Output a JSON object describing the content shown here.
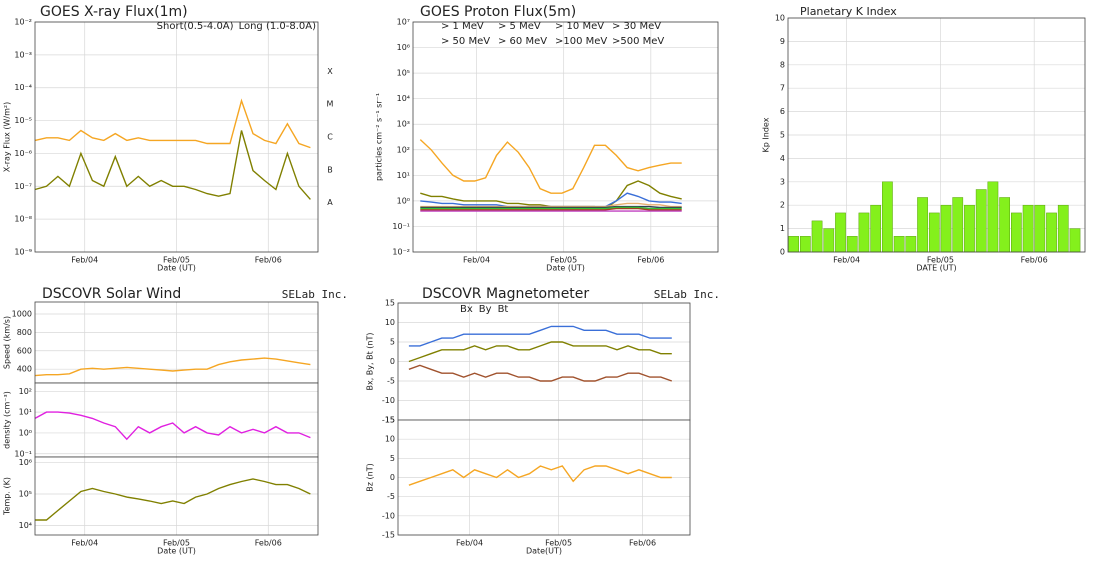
{
  "chart_data": [
    {
      "type": "line",
      "title": "GOES X-ray Flux(1m)",
      "ylabel": "X-ray Flux (W/m²)",
      "xlabel": "Date (UT)",
      "log_y": true,
      "grid": true,
      "xlim": [
        0,
        74
      ],
      "xticks": [
        {
          "value": 13,
          "label": "Feb/04"
        },
        {
          "value": 37,
          "label": "Feb/05"
        },
        {
          "value": 61,
          "label": "Feb/06"
        }
      ],
      "ylim": [
        1e-09,
        0.01
      ],
      "yticks": [
        {
          "value": 1e-09,
          "label": "10⁻⁹"
        },
        {
          "value": 1e-08,
          "label": "10⁻⁸"
        },
        {
          "value": 1e-07,
          "label": "10⁻⁷"
        },
        {
          "value": 1e-06,
          "label": "10⁻⁶"
        },
        {
          "value": 1e-05,
          "label": "10⁻⁵"
        },
        {
          "value": 0.0001,
          "label": "10⁻⁴"
        },
        {
          "value": 0.001,
          "label": "10⁻³"
        },
        {
          "value": 0.01,
          "label": "10⁻²"
        }
      ],
      "flare_classes": [
        {
          "value": 1e-08,
          "label": "A"
        },
        {
          "value": 1e-07,
          "label": "B"
        },
        {
          "value": 1e-06,
          "label": "C"
        },
        {
          "value": 1e-05,
          "label": "M"
        },
        {
          "value": 0.0001,
          "label": "X"
        }
      ],
      "x": [
        0,
        3,
        6,
        9,
        12,
        15,
        18,
        21,
        24,
        27,
        30,
        33,
        36,
        39,
        42,
        45,
        48,
        51,
        54,
        57,
        60,
        63,
        66,
        69,
        72
      ],
      "series": [
        {
          "name": "Short(0.5-4.0A)",
          "color": "#808000",
          "values": [
            8e-08,
            1e-07,
            2e-07,
            1e-07,
            1e-06,
            1.5e-07,
            1e-07,
            8e-07,
            1e-07,
            2e-07,
            1e-07,
            1.5e-07,
            1e-07,
            1e-07,
            8e-08,
            6e-08,
            5e-08,
            6e-08,
            5e-06,
            3e-07,
            1.5e-07,
            8e-08,
            1e-06,
            1e-07,
            4e-08
          ]
        },
        {
          "name": "Long (1.0-8.0A)",
          "color": "#f5a623",
          "values": [
            2.5e-06,
            3e-06,
            3e-06,
            2.5e-06,
            5e-06,
            3e-06,
            2.5e-06,
            4e-06,
            2.5e-06,
            3e-06,
            2.5e-06,
            2.5e-06,
            2.5e-06,
            2.5e-06,
            2.5e-06,
            2e-06,
            2e-06,
            2e-06,
            4e-05,
            4e-06,
            2.5e-06,
            2e-06,
            8e-06,
            2e-06,
            1.5e-06
          ]
        }
      ]
    },
    {
      "type": "line",
      "title": "GOES Proton Flux(5m)",
      "ylabel": "particles cm⁻² s⁻¹ sr⁻¹",
      "xlabel": "Date (UT)",
      "log_y": true,
      "grid": true,
      "xlim": [
        -2,
        82
      ],
      "xticks": [
        {
          "value": 15.5,
          "label": "Feb/04"
        },
        {
          "value": 39.5,
          "label": "Feb/05"
        },
        {
          "value": 63.5,
          "label": "Feb/06"
        }
      ],
      "ylim": [
        0.01,
        10000000.0
      ],
      "yticks": [
        {
          "value": 0.01,
          "label": "10⁻²"
        },
        {
          "value": 0.1,
          "label": "10⁻¹"
        },
        {
          "value": 1,
          "label": "10⁰"
        },
        {
          "value": 10,
          "label": "10¹"
        },
        {
          "value": 100,
          "label": "10²"
        },
        {
          "value": 1000,
          "label": "10³"
        },
        {
          "value": 10000,
          "label": "10⁴"
        },
        {
          "value": 100000,
          "label": "10⁵"
        },
        {
          "value": 1000000,
          "label": "10⁶"
        },
        {
          "value": 10000000,
          "label": "10⁷"
        }
      ],
      "x": [
        0,
        3,
        6,
        9,
        12,
        15,
        18,
        21,
        24,
        27,
        30,
        33,
        36,
        39,
        42,
        45,
        48,
        51,
        54,
        57,
        60,
        63,
        66,
        69,
        72
      ],
      "series": [
        {
          "name": "> 1 MeV",
          "color": "#f5a623",
          "values": [
            250,
            100,
            30,
            10,
            6,
            6,
            8,
            60,
            200,
            80,
            20,
            3,
            2,
            2,
            3,
            20,
            150,
            150,
            60,
            20,
            15,
            20,
            25,
            30,
            30
          ]
        },
        {
          "name": "> 5 MeV",
          "color": "#808000",
          "values": [
            2,
            1.5,
            1.5,
            1.2,
            1,
            1,
            1,
            1,
            0.8,
            0.8,
            0.7,
            0.7,
            0.6,
            0.6,
            0.6,
            0.6,
            0.6,
            0.5,
            1,
            4,
            6,
            4,
            2,
            1.5,
            1.2
          ]
        },
        {
          "name": "> 10 MeV",
          "color": "#3a6fd8",
          "values": [
            1,
            0.9,
            0.8,
            0.8,
            0.7,
            0.7,
            0.7,
            0.7,
            0.6,
            0.6,
            0.6,
            0.6,
            0.6,
            0.6,
            0.6,
            0.6,
            0.6,
            0.6,
            1,
            2,
            1.5,
            1,
            0.9,
            0.9,
            0.8
          ]
        },
        {
          "name": "> 30 MeV",
          "color": "#e8b070",
          "values": [
            0.6,
            0.6,
            0.6,
            0.6,
            0.6,
            0.6,
            0.6,
            0.6,
            0.6,
            0.6,
            0.6,
            0.6,
            0.6,
            0.6,
            0.6,
            0.6,
            0.6,
            0.6,
            0.7,
            0.8,
            0.8,
            0.7,
            0.7,
            0.6,
            0.6
          ]
        },
        {
          "name": "> 50 MeV",
          "color": "#304050",
          "values": [
            0.55,
            0.55,
            0.55,
            0.55,
            0.55,
            0.55,
            0.55,
            0.55,
            0.55,
            0.55,
            0.55,
            0.55,
            0.55,
            0.55,
            0.55,
            0.55,
            0.55,
            0.55,
            0.6,
            0.6,
            0.6,
            0.6,
            0.55,
            0.55,
            0.55
          ]
        },
        {
          "name": "> 60 MeV",
          "color": "#33c033",
          "values": [
            0.5,
            0.5,
            0.5,
            0.5,
            0.5,
            0.5,
            0.5,
            0.5,
            0.5,
            0.5,
            0.5,
            0.5,
            0.5,
            0.5,
            0.5,
            0.5,
            0.5,
            0.5,
            0.55,
            0.55,
            0.55,
            0.5,
            0.5,
            0.5,
            0.5
          ]
        },
        {
          "name": ">100 MeV",
          "color": "#a04020",
          "values": [
            0.45,
            0.45,
            0.45,
            0.45,
            0.45,
            0.45,
            0.45,
            0.45,
            0.45,
            0.45,
            0.45,
            0.45,
            0.45,
            0.45,
            0.45,
            0.45,
            0.45,
            0.45,
            0.5,
            0.5,
            0.5,
            0.45,
            0.45,
            0.45,
            0.45
          ]
        },
        {
          "name": ">500 MeV",
          "color": "#c040c0",
          "values": [
            0.4,
            0.4,
            0.4,
            0.4,
            0.4,
            0.4,
            0.4,
            0.4,
            0.4,
            0.4,
            0.4,
            0.4,
            0.4,
            0.4,
            0.4,
            0.4,
            0.4,
            0.4,
            0.4,
            0.4,
            0.4,
            0.4,
            0.4,
            0.4,
            0.4
          ]
        }
      ]
    },
    {
      "type": "bar",
      "title": "Planetary K Index",
      "ylabel": "Kp Index",
      "xlabel": "DATE (UT)",
      "grid": true,
      "color": "#84f01c",
      "xlim": [
        0,
        76
      ],
      "xticks": [
        {
          "value": 15,
          "label": "Feb/04"
        },
        {
          "value": 39,
          "label": "Feb/05"
        },
        {
          "value": 63,
          "label": "Feb/06"
        }
      ],
      "ylim": [
        0,
        10
      ],
      "yticks": [
        0,
        1,
        2,
        3,
        4,
        5,
        6,
        7,
        8,
        9,
        10
      ],
      "x": [
        0,
        3,
        6,
        9,
        12,
        15,
        18,
        21,
        24,
        27,
        30,
        33,
        36,
        39,
        42,
        45,
        48,
        51,
        54,
        57,
        60,
        63,
        66,
        69,
        72
      ],
      "values": [
        0.67,
        0.67,
        1.33,
        1,
        1.67,
        0.67,
        1.67,
        2,
        3,
        0.67,
        0.67,
        2.33,
        1.67,
        2,
        2.33,
        2,
        2.67,
        3,
        2.33,
        1.67,
        2,
        2,
        1.67,
        2,
        1
      ]
    },
    {
      "type": "line",
      "title": "DSCOVR Solar Wind",
      "credit": "SELab Inc.",
      "xlabel": "Date (UT)",
      "grid": true,
      "xlim": [
        0,
        74
      ],
      "xticks": [
        {
          "value": 13,
          "label": "Feb/04"
        },
        {
          "value": 37,
          "label": "Feb/05"
        },
        {
          "value": 61,
          "label": "Feb/06"
        }
      ],
      "x": [
        0,
        3,
        6,
        9,
        12,
        15,
        18,
        21,
        24,
        27,
        30,
        33,
        36,
        39,
        42,
        45,
        48,
        51,
        54,
        57,
        60,
        63,
        66,
        69,
        72
      ],
      "panels": [
        {
          "ylabel": "Speed (km/s)",
          "ylim": [
            250,
            1130
          ],
          "yticks": [
            400,
            600,
            800,
            1000
          ],
          "series": [
            {
              "color": "#f5a623",
              "values": [
                330,
                340,
                340,
                350,
                400,
                410,
                400,
                410,
                420,
                410,
                400,
                390,
                380,
                390,
                400,
                400,
                450,
                480,
                500,
                510,
                520,
                510,
                490,
                470,
                450
              ]
            }
          ]
        },
        {
          "ylabel": "density (cm⁻³)",
          "log_y": true,
          "ylim": [
            0.07,
            250
          ],
          "yticks": [
            {
              "value": 0.1,
              "label": "10⁻¹"
            },
            {
              "value": 1,
              "label": "10⁰"
            },
            {
              "value": 10,
              "label": "10¹"
            },
            {
              "value": 100,
              "label": "10²"
            }
          ],
          "series": [
            {
              "color": "#e020e0",
              "values": [
                5,
                10,
                10,
                9,
                7,
                5,
                3,
                2,
                0.5,
                2,
                1,
                2,
                3,
                1,
                2,
                1,
                0.8,
                2,
                1,
                1.5,
                1,
                2,
                1,
                1,
                0.6
              ]
            }
          ]
        },
        {
          "ylabel": "Temp. (K)",
          "log_y": true,
          "ylim": [
            5000,
            1500000
          ],
          "yticks": [
            {
              "value": 10000,
              "label": "10⁴"
            },
            {
              "value": 100000,
              "label": "10⁵"
            },
            {
              "value": 1000000,
              "label": "10⁶"
            }
          ],
          "series": [
            {
              "color": "#808000",
              "values": [
                15000,
                15000,
                30000,
                60000,
                120000,
                150000,
                120000,
                100000,
                80000,
                70000,
                60000,
                50000,
                60000,
                50000,
                80000,
                100000,
                150000,
                200000,
                250000,
                300000,
                250000,
                200000,
                200000,
                150000,
                100000
              ]
            }
          ]
        }
      ]
    },
    {
      "type": "line",
      "title": "DSCOVR Magnetometer",
      "credit": "SELab Inc.",
      "xlabel": "Date(UT)",
      "grid": true,
      "xlim": [
        -3,
        77
      ],
      "xticks": [
        {
          "value": 16.6,
          "label": "Feb/04"
        },
        {
          "value": 41,
          "label": "Feb/05"
        },
        {
          "value": 64,
          "label": "Feb/06"
        }
      ],
      "x": [
        0,
        3,
        6,
        9,
        12,
        15,
        18,
        21,
        24,
        27,
        30,
        33,
        36,
        39,
        42,
        45,
        48,
        51,
        54,
        57,
        60,
        63,
        66,
        69,
        72
      ],
      "panels": [
        {
          "ylabel": "Bx, By, Bt (nT)",
          "ylim": [
            -15,
            15
          ],
          "yticks": [
            -15,
            -10,
            -5,
            0,
            5,
            10,
            15
          ],
          "series": [
            {
              "name": "Bx",
              "color": "#a0522d",
              "values": [
                -2,
                -1,
                -2,
                -3,
                -3,
                -4,
                -3,
                -4,
                -3,
                -3,
                -4,
                -4,
                -5,
                -5,
                -4,
                -4,
                -5,
                -5,
                -4,
                -4,
                -3,
                -3,
                -4,
                -4,
                -5
              ]
            },
            {
              "name": "By",
              "color": "#808000",
              "values": [
                0,
                1,
                2,
                3,
                3,
                3,
                4,
                3,
                4,
                4,
                3,
                3,
                4,
                5,
                5,
                4,
                4,
                4,
                4,
                3,
                4,
                3,
                3,
                2,
                2
              ]
            },
            {
              "name": "Bt",
              "color": "#3a6fd8",
              "values": [
                4,
                4,
                5,
                6,
                6,
                7,
                7,
                7,
                7,
                7,
                7,
                7,
                8,
                9,
                9,
                9,
                8,
                8,
                8,
                7,
                7,
                7,
                6,
                6,
                6
              ]
            }
          ]
        },
        {
          "ylabel": "Bz (nT)",
          "ylim": [
            -15,
            15
          ],
          "yticks": [
            -15,
            -10,
            -5,
            0,
            5,
            10,
            15
          ],
          "series": [
            {
              "color": "#f5a623",
              "values": [
                -2,
                -1,
                0,
                1,
                2,
                0,
                2,
                1,
                0,
                2,
                0,
                1,
                3,
                2,
                3,
                -1,
                2,
                3,
                3,
                2,
                1,
                2,
                1,
                0,
                0
              ]
            }
          ]
        }
      ]
    }
  ]
}
